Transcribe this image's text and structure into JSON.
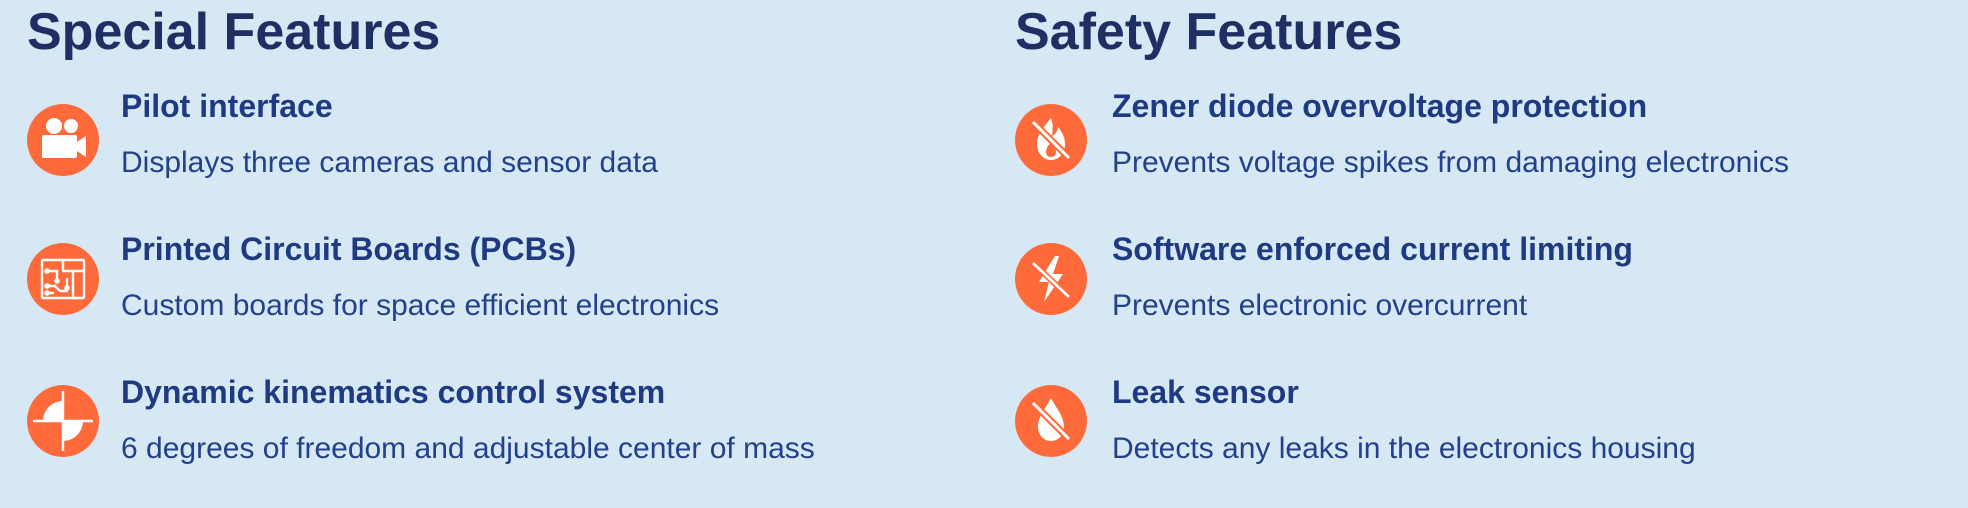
{
  "special": {
    "heading": "Special Features",
    "items": [
      {
        "title": "Pilot interface",
        "description": "Displays three cameras and sensor data",
        "icon": "video-camera-icon"
      },
      {
        "title": "Printed Circuit Boards (PCBs)",
        "description": "Custom boards for space efficient electronics",
        "icon": "circuit-board-icon"
      },
      {
        "title": "Dynamic kinematics control system",
        "description": "6 degrees of freedom and adjustable center of mass",
        "icon": "center-of-mass-icon"
      }
    ]
  },
  "safety": {
    "heading": "Safety Features",
    "items": [
      {
        "title": "Zener diode overvoltage protection",
        "description": "Prevents voltage spikes from damaging electronics",
        "icon": "no-fire-icon"
      },
      {
        "title": "Software enforced current limiting",
        "description": "Prevents electronic overcurrent",
        "icon": "no-lightning-icon"
      },
      {
        "title": "Leak sensor",
        "description": "Detects any leaks in the electronics housing",
        "icon": "no-water-drop-icon"
      }
    ]
  },
  "colors": {
    "background": "#d6e8f4",
    "heading": "#1e2f63",
    "title": "#1f3a80",
    "icon": "#ff6a3a"
  }
}
